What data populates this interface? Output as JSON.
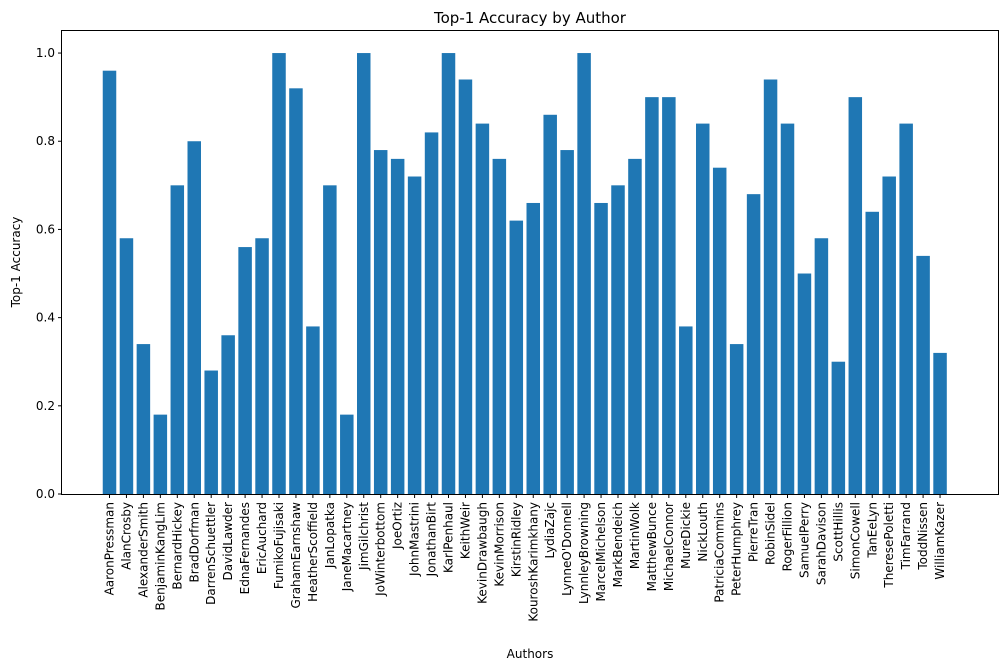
{
  "chart_data": {
    "type": "bar",
    "title": "Top-1 Accuracy by Author",
    "xlabel": "Authors",
    "ylabel": "Top-1 Accuracy",
    "ylim": [
      0,
      1.05
    ],
    "yticks": [
      "0.0",
      "0.2",
      "0.4",
      "0.6",
      "0.8",
      "1.0"
    ],
    "ytick_values": [
      0,
      0.2,
      0.4,
      0.6,
      0.8,
      1.0
    ],
    "bar_color": "#1f77b4",
    "grid": false,
    "categories": [
      "AaronPressman",
      "AlanCrosby",
      "AlexanderSmith",
      "BenjaminKangLim",
      "BernardHickey",
      "BradDorfman",
      "DarrenSchuettler",
      "DavidLawder",
      "EdnaFernandes",
      "EricAuchard",
      "FumikoFujisaki",
      "GrahamEarnshaw",
      "HeatherScoffield",
      "JanLopatka",
      "JaneMacartney",
      "JimGilchrist",
      "JoWinterbottom",
      "JoeOrtiz",
      "JohnMastrini",
      "JonathanBirt",
      "KarlPenhaul",
      "KeithWeir",
      "KevinDrawbaugh",
      "KevinMorrison",
      "KirstinRidley",
      "KouroshKarimkhany",
      "LydiaZajc",
      "LynneO'Donnell",
      "LynnleyBrowning",
      "MarcelMichelson",
      "MarkBendeich",
      "MartinWolk",
      "MatthewBunce",
      "MichaelConnor",
      "MureDickie",
      "NickLouth",
      "PatriciaCommins",
      "PeterHumphrey",
      "PierreTran",
      "RobinSidel",
      "RogerFillion",
      "SamuelPerry",
      "SarahDavison",
      "ScottHillis",
      "SimonCowell",
      "TanEeLyn",
      "TheresePoletti",
      "TimFarrand",
      "ToddNissen",
      "WilliamKazer"
    ],
    "values": [
      0.96,
      0.58,
      0.34,
      0.18,
      0.7,
      0.8,
      0.28,
      0.36,
      0.56,
      0.58,
      1.0,
      0.92,
      0.38,
      0.7,
      0.18,
      1.0,
      0.78,
      0.76,
      0.72,
      0.82,
      1.0,
      0.94,
      0.84,
      0.76,
      0.62,
      0.66,
      0.86,
      0.78,
      1.0,
      0.66,
      0.7,
      0.76,
      0.9,
      0.9,
      0.38,
      0.84,
      0.74,
      0.34,
      0.68,
      0.94,
      0.84,
      0.5,
      0.58,
      0.3,
      0.9,
      0.64,
      0.72,
      0.84,
      0.54,
      0.32
    ]
  }
}
